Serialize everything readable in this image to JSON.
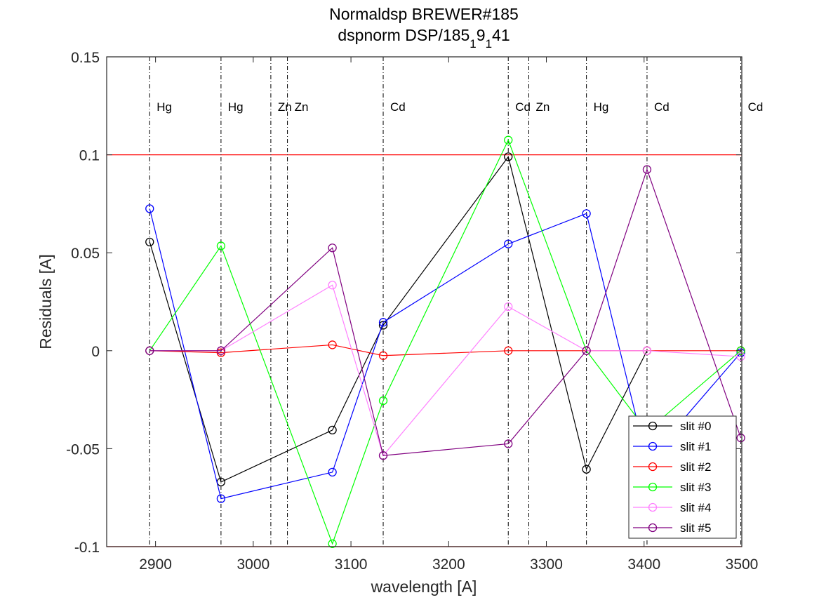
{
  "chart_data": {
    "type": "line",
    "title": "Normaldsp BREWER#185",
    "subtitle_parts": [
      "dspnorm DSP/185",
      "1",
      "9",
      "1",
      "41"
    ],
    "xlabel": "wavelength [A]",
    "ylabel": "Residuals [A]",
    "xlim": [
      2850,
      3500
    ],
    "ylim": [
      -0.1,
      0.15
    ],
    "xticks": [
      2900,
      3000,
      3100,
      3200,
      3300,
      3400,
      3500
    ],
    "xtick_labels": [
      "2900",
      "3000",
      "3100",
      "3200",
      "3300",
      "3400",
      "3500"
    ],
    "yticks": [
      -0.1,
      -0.05,
      0,
      0.05,
      0.1,
      0.15
    ],
    "ytick_labels": [
      "-0.1",
      "-0.05",
      "0",
      "0.05",
      "0.1",
      "0.15"
    ],
    "grid": false,
    "legend_position": "bottom-right",
    "x": [
      2894,
      2967,
      3081,
      3133,
      3261,
      3341,
      3403,
      3499
    ],
    "series": [
      {
        "name": "slit #0",
        "color": "#000000",
        "values": [
          0.0555,
          -0.067,
          -0.0405,
          0.013,
          0.099,
          -0.0605,
          0.0,
          null
        ]
      },
      {
        "name": "slit #1",
        "color": "#0000ff",
        "values": [
          0.0725,
          -0.0755,
          -0.062,
          0.0145,
          0.0545,
          0.07,
          -0.0565,
          -0.001
        ]
      },
      {
        "name": "slit #2",
        "color": "#ff0000",
        "values": [
          0.0,
          -0.001,
          0.003,
          -0.0025,
          0.0,
          0.0,
          0.0,
          0.0
        ]
      },
      {
        "name": "slit #3",
        "color": "#00ff00",
        "values": [
          0.0,
          0.0535,
          -0.0985,
          -0.0255,
          0.1075,
          0.0,
          -0.041,
          0.0
        ]
      },
      {
        "name": "slit #4",
        "color": "#ff80ff",
        "values": [
          0.0,
          0.0,
          0.0335,
          -0.0535,
          0.0225,
          0.0,
          0.0,
          -0.003
        ]
      },
      {
        "name": "slit #5",
        "color": "#800080",
        "values": [
          0.0,
          0.0,
          0.0525,
          -0.0535,
          -0.0475,
          0.0,
          0.0925,
          -0.0445
        ]
      }
    ],
    "reference_lines": [
      {
        "y": 0.1,
        "color": "#ff0000"
      },
      {
        "y": -0.1,
        "color": "#ff0000"
      }
    ],
    "spectral_lines": [
      {
        "x": 2894,
        "label": "Hg"
      },
      {
        "x": 2967,
        "label": "Hg"
      },
      {
        "x": 3018,
        "label": "Zn"
      },
      {
        "x": 3035,
        "label": "Zn"
      },
      {
        "x": 3133,
        "label": "Cd"
      },
      {
        "x": 3261,
        "label": "Cd"
      },
      {
        "x": 3282,
        "label": "Zn"
      },
      {
        "x": 3341,
        "label": "Hg"
      },
      {
        "x": 3403,
        "label": "Cd"
      },
      {
        "x": 3499,
        "label": "Cd"
      }
    ]
  }
}
